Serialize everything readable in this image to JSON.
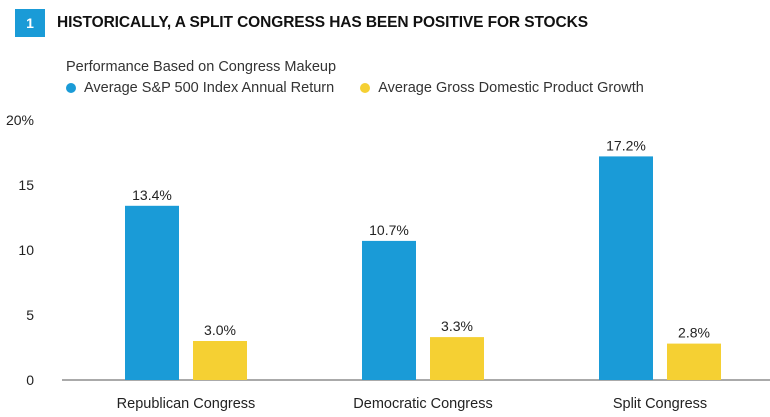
{
  "header": {
    "number": "1",
    "title": "HISTORICALLY, A SPLIT CONGRESS HAS BEEN POSITIVE FOR STOCKS"
  },
  "colors": {
    "badge": "#1a9bd7",
    "series_sp500": "#1a9bd7",
    "series_gdp": "#f5d033",
    "axis": "#555555",
    "text": "#222222"
  },
  "chart_data": {
    "type": "bar",
    "title": "HISTORICALLY, A SPLIT CONGRESS HAS BEEN POSITIVE FOR STOCKS",
    "subtitle": "Performance Based on Congress Makeup",
    "categories": [
      "Republican Congress",
      "Democratic Congress",
      "Split Congress"
    ],
    "series": [
      {
        "name": "Average S&P 500 Index Annual Return",
        "values": [
          13.4,
          10.7,
          17.2
        ],
        "labels": [
          "13.4%",
          "10.7%",
          "17.2%"
        ]
      },
      {
        "name": "Average Gross Domestic Product Growth",
        "values": [
          3.0,
          3.3,
          2.8
        ],
        "labels": [
          "3.0%",
          "3.3%",
          "2.8%"
        ]
      }
    ],
    "y_ticks": [
      0,
      5,
      10,
      15,
      20
    ],
    "y_tick_labels": [
      "0",
      "5",
      "10",
      "15",
      "20%"
    ],
    "ylim": [
      0,
      20
    ],
    "grid": false,
    "legend_position": "top-left"
  }
}
